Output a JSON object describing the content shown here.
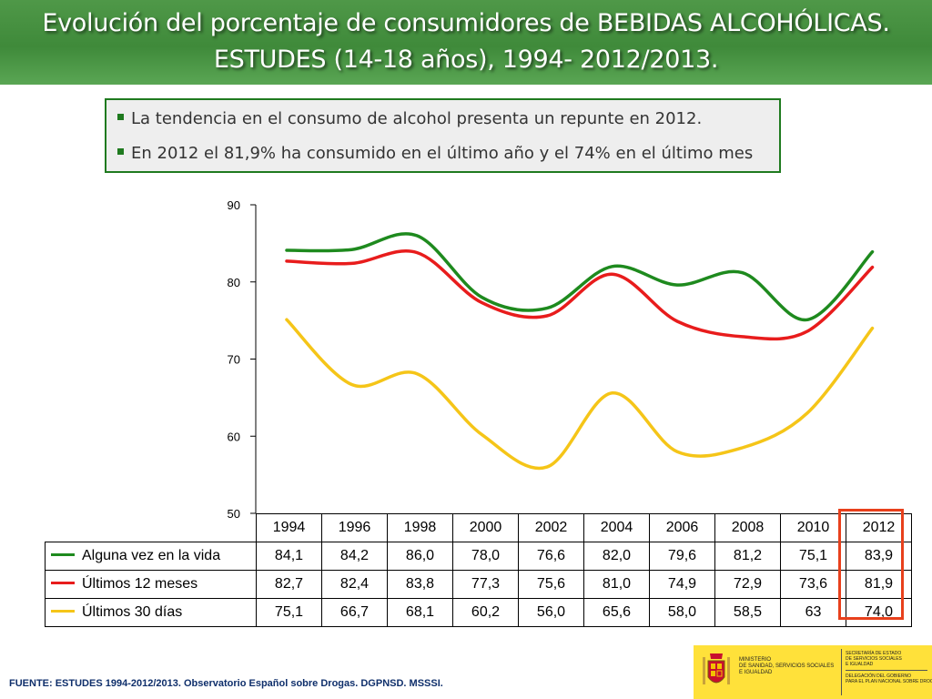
{
  "title": {
    "line1": "Evolución del porcentaje de consumidores de BEBIDAS ALCOHÓLICAS.",
    "line2": "ESTUDES (14-18 años), 1994- 2012/2013."
  },
  "bullets": [
    "La tendencia en el consumo de alcohol presenta un repunte en 2012.",
    "En 2012 el 81,9% ha consumido en el último año y el 74% en el último mes"
  ],
  "chart_data": {
    "type": "line",
    "categories": [
      "1994",
      "1996",
      "1998",
      "2000",
      "2002",
      "2004",
      "2006",
      "2008",
      "2010",
      "2012"
    ],
    "x_values": [
      1994,
      1996,
      1998,
      2000,
      2002,
      2004,
      2006,
      2008,
      2010,
      2012
    ],
    "ylim": [
      50,
      90
    ],
    "yticks": [
      "50",
      "60",
      "70",
      "80",
      "90"
    ],
    "series": [
      {
        "name": "Alguna vez en la vida",
        "color": "#1e8a1e",
        "labels": [
          "84,1",
          "84,2",
          "86,0",
          "78,0",
          "76,6",
          "82,0",
          "79,6",
          "81,2",
          "75,1",
          "83,9"
        ],
        "values": [
          84.1,
          84.2,
          86.0,
          78.0,
          76.6,
          82.0,
          79.6,
          81.2,
          75.1,
          83.9
        ]
      },
      {
        "name": "Últimos 12 meses",
        "color": "#e81c1c",
        "labels": [
          "82,7",
          "82,4",
          "83,8",
          "77,3",
          "75,6",
          "81,0",
          "74,9",
          "72,9",
          "73,6",
          "81,9"
        ],
        "values": [
          82.7,
          82.4,
          83.8,
          77.3,
          75.6,
          81.0,
          74.9,
          72.9,
          73.6,
          81.9
        ]
      },
      {
        "name": "Últimos 30 días",
        "color": "#f5c518",
        "labels": [
          "75,1",
          "66,7",
          "68,1",
          "60,2",
          "56,0",
          "65,6",
          "58,0",
          "58,5",
          "63",
          "74,0"
        ],
        "values": [
          75.1,
          66.7,
          68.1,
          60.2,
          56.0,
          65.6,
          58.0,
          58.5,
          63.0,
          74.0
        ]
      }
    ],
    "highlight_color": "#e8401c",
    "highlight_category": "2012"
  },
  "footer": "FUENTE: ESTUDES 1994-2012/2013. Observatorio Español sobre Drogas. DGPNSD. MSSSI.",
  "ministry": {
    "name": "MINISTERIO\nDE SANIDAD, SERVICIOS SOCIALES\nE IGUALDAD",
    "secretaria": "SECRETARÍA DE ESTADO\nDE SERVICIOS SOCIALES\nE IGUALDAD",
    "delegacion": "DELEGACIÓN DEL GOBIERNO\nPARA EL PLAN NACIONAL SOBRE DROGAS"
  }
}
